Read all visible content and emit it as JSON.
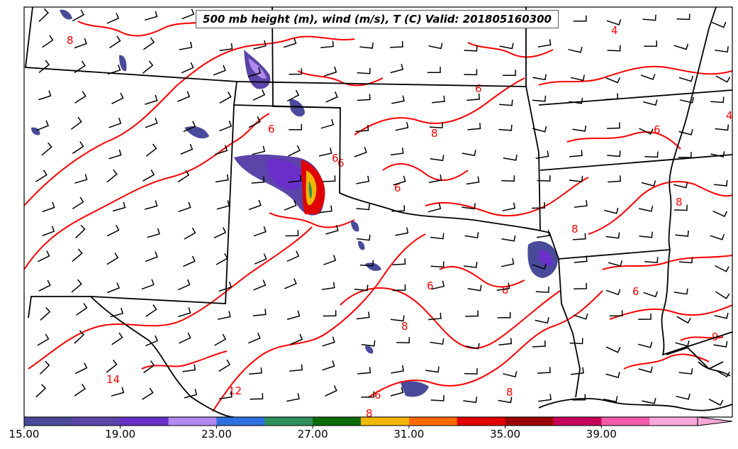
{
  "title": "500 mb height (m), wind (m/s), T (C) Valid: 201805160300",
  "colorbar": {
    "colors": [
      "#4a4a9a",
      "#5b45a8",
      "#6a2fc9",
      "#b08af0",
      "#2f6fe0",
      "#2e8f5a",
      "#0b6b0b",
      "#f2b705",
      "#ff6a00",
      "#e00000",
      "#9c0000",
      "#c8005a",
      "#f25aaa",
      "#f8a8d8"
    ],
    "tick_labels": [
      "15.00",
      "19.00",
      "23.00",
      "27.00",
      "31.00",
      "35.00",
      "39.00"
    ],
    "tick_values": [
      15,
      19,
      23,
      27,
      31,
      35,
      39
    ],
    "range": [
      15,
      43
    ]
  },
  "contour_labels": [
    "8",
    "4",
    "6",
    "6",
    "8",
    "6",
    "4",
    "6",
    "6",
    "8",
    "8",
    "6",
    "8",
    "6",
    "9",
    "8",
    "6",
    "14",
    "12",
    "6",
    "8",
    "8"
  ],
  "colors": {
    "contour": "#ff0000",
    "boundary": "#000000",
    "barb": "#000000"
  }
}
